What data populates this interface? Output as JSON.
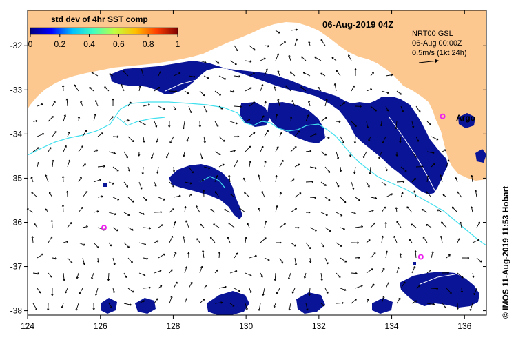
{
  "title": "06-Aug-2019 04Z",
  "colorbar": {
    "title": "std dev of 4hr SST comp",
    "ticks": [
      "0",
      "0.2",
      "0.4",
      "0.6",
      "0.8",
      "1"
    ],
    "stops": [
      "#00007f",
      "#0000ff",
      "#00bfff",
      "#40ffbf",
      "#bfff40",
      "#ffbf00",
      "#ff3f00",
      "#7f0000"
    ]
  },
  "info": {
    "line1": "NRT00 GSL",
    "line2": "06-Aug 00:00Z",
    "line3": "0.5m/s (1kt 24h)"
  },
  "argo": {
    "label": "Argo",
    "floats": [
      {
        "lon": 126.1,
        "lat": -36.12
      },
      {
        "lon": 134.8,
        "lat": -36.78
      },
      {
        "lon": 135.4,
        "lat": -33.6
      }
    ]
  },
  "credit": "© IMOS 11-Aug-2019 11:53 Hobart",
  "axes": {
    "lon_ticks": [
      "124",
      "126",
      "128",
      "130",
      "132",
      "134",
      "136"
    ],
    "lat_ticks": [
      "-32",
      "-33",
      "-34",
      "-35",
      "-36",
      "-37",
      "-38"
    ],
    "lon_range": [
      124,
      136.6
    ],
    "lat_range": [
      -38.1,
      -31.2
    ]
  },
  "colors": {
    "land": "#fcc890",
    "ocean": "#ffffff",
    "sst_patch": "#0a1496",
    "contour": "#40e0ee",
    "argo": "#ee22ee"
  }
}
